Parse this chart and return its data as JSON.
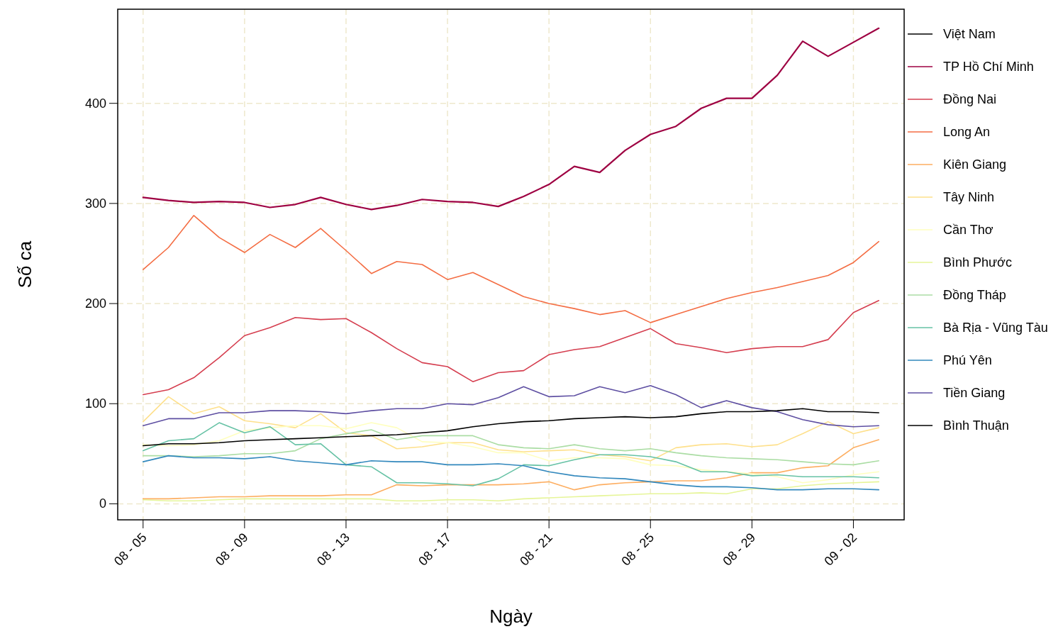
{
  "chart_data": {
    "type": "line",
    "xlabel": "Ngày",
    "ylabel": "Số ca",
    "x": [
      "--08-05",
      "--08-06",
      "--08-07",
      "--08-08",
      "--08-09",
      "--08-10",
      "--08-11",
      "--08-12",
      "--08-13",
      "--08-14",
      "--08-15",
      "--08-16",
      "--08-17",
      "--08-18",
      "--08-19",
      "--08-20",
      "--08-21",
      "--08-22",
      "--08-23",
      "--08-24",
      "--08-25",
      "--08-26",
      "--08-27",
      "--08-28",
      "--08-29",
      "--08-30",
      "--08-31",
      "--09-01",
      "--09-02",
      "--09-03"
    ],
    "xlim": [
      "--08-04",
      "--09-04"
    ],
    "xticks": [
      {
        "value": "--08-05",
        "label": "08 - 05"
      },
      {
        "value": "--08-09",
        "label": "08 - 09"
      },
      {
        "value": "--08-13",
        "label": "08 - 13"
      },
      {
        "value": "--08-17",
        "label": "08 - 17"
      },
      {
        "value": "--08-21",
        "label": "08 - 21"
      },
      {
        "value": "--08-25",
        "label": "08 - 25"
      },
      {
        "value": "--08-29",
        "label": "08 - 29"
      },
      {
        "value": "--09-02",
        "label": "09 - 02"
      }
    ],
    "ylim": [
      -16,
      494
    ],
    "yticks": [
      0,
      100,
      200,
      300,
      400
    ],
    "grid": true,
    "legend": "right",
    "line_style": "solid",
    "series": [
      {
        "name": "Việt Nam",
        "color": "#000000",
        "values": [
          null,
          null,
          null,
          null,
          null,
          null,
          null,
          null,
          null,
          null,
          null,
          null,
          null,
          null,
          null,
          null,
          null,
          null,
          null,
          null,
          null,
          null,
          null,
          null,
          null,
          null,
          null,
          null,
          null,
          null
        ]
      },
      {
        "name": "TP Hồ Chí Minh",
        "color": "#9e0142",
        "values": [
          306,
          303,
          301,
          302,
          301,
          296,
          299,
          306,
          299,
          294,
          298,
          304,
          302,
          301,
          297,
          307,
          319,
          337,
          331,
          353,
          369,
          377,
          395,
          405,
          405,
          428,
          462,
          447,
          461,
          475
        ]
      },
      {
        "name": "Đồng Nai",
        "color": "#d53e4f",
        "values": [
          109,
          114,
          126,
          146,
          168,
          176,
          186,
          184,
          185,
          171,
          155,
          141,
          137,
          122,
          131,
          133,
          149,
          154,
          157,
          166,
          175,
          160,
          156,
          151,
          155,
          157,
          157,
          164,
          191,
          203
        ]
      },
      {
        "name": "Long An",
        "color": "#f46d43",
        "values": [
          234,
          256,
          288,
          266,
          251,
          269,
          256,
          275,
          253,
          230,
          242,
          239,
          224,
          231,
          219,
          207,
          200,
          195,
          189,
          193,
          181,
          189,
          197,
          205,
          211,
          216,
          222,
          228,
          241,
          262
        ]
      },
      {
        "name": "Kiên Giang",
        "color": "#fdae61",
        "values": [
          5,
          5,
          6,
          7,
          7,
          8,
          8,
          8,
          9,
          9,
          19,
          18,
          19,
          19,
          19,
          20,
          22,
          14,
          19,
          21,
          22,
          23,
          23,
          26,
          31,
          31,
          36,
          38,
          56,
          64
        ]
      },
      {
        "name": "Tây Ninh",
        "color": "#fee08b",
        "values": [
          82,
          107,
          90,
          97,
          83,
          80,
          76,
          90,
          71,
          68,
          55,
          57,
          61,
          61,
          54,
          52,
          53,
          54,
          49,
          47,
          43,
          56,
          59,
          60,
          57,
          59,
          70,
          82,
          70,
          76
        ]
      },
      {
        "name": "Cần Thơ",
        "color": "#ffffbf",
        "values": [
          59,
          58,
          59,
          63,
          73,
          76,
          78,
          78,
          75,
          81,
          76,
          62,
          61,
          57,
          51,
          51,
          43,
          46,
          46,
          45,
          39,
          38,
          34,
          32,
          30,
          27,
          21,
          24,
          29,
          32
        ]
      },
      {
        "name": "Bình Phước",
        "color": "#e6f598",
        "values": [
          4,
          3,
          3,
          4,
          5,
          5,
          5,
          5,
          5,
          5,
          3,
          3,
          4,
          4,
          3,
          5,
          6,
          7,
          8,
          9,
          10,
          10,
          11,
          10,
          15,
          15,
          18,
          20,
          21,
          22
        ]
      },
      {
        "name": "Đồng Tháp",
        "color": "#abdda4",
        "values": [
          48,
          48,
          47,
          48,
          50,
          50,
          53,
          65,
          70,
          74,
          64,
          68,
          68,
          68,
          59,
          56,
          55,
          59,
          55,
          53,
          55,
          51,
          48,
          46,
          45,
          44,
          42,
          40,
          39,
          43
        ]
      },
      {
        "name": "Bà Rịa - Vũng Tàu",
        "color": "#66c2a5",
        "values": [
          53,
          63,
          65,
          81,
          71,
          77,
          59,
          60,
          39,
          37,
          21,
          21,
          20,
          18,
          25,
          39,
          38,
          44,
          49,
          49,
          47,
          42,
          32,
          32,
          28,
          29,
          27,
          27,
          27,
          26
        ]
      },
      {
        "name": "Phú Yên",
        "color": "#3288bd",
        "values": [
          42,
          48,
          46,
          46,
          45,
          47,
          43,
          41,
          39,
          43,
          42,
          42,
          39,
          39,
          40,
          38,
          32,
          28,
          26,
          25,
          22,
          19,
          17,
          17,
          16,
          14,
          14,
          15,
          15,
          14
        ]
      },
      {
        "name": "Tiền Giang",
        "color": "#5e4fa2",
        "values": [
          78,
          85,
          85,
          91,
          91,
          93,
          93,
          92,
          90,
          93,
          95,
          95,
          100,
          99,
          106,
          117,
          107,
          108,
          117,
          111,
          118,
          109,
          96,
          103,
          96,
          92,
          84,
          79,
          77,
          78
        ]
      },
      {
        "name": "Bình Thuận",
        "color": "#000000",
        "values": [
          58,
          60,
          60,
          61,
          63,
          64,
          65,
          66,
          67,
          68,
          69,
          71,
          73,
          77,
          80,
          82,
          83,
          85,
          86,
          87,
          86,
          87,
          90,
          92,
          92,
          93,
          95,
          92,
          92,
          91
        ]
      }
    ]
  }
}
